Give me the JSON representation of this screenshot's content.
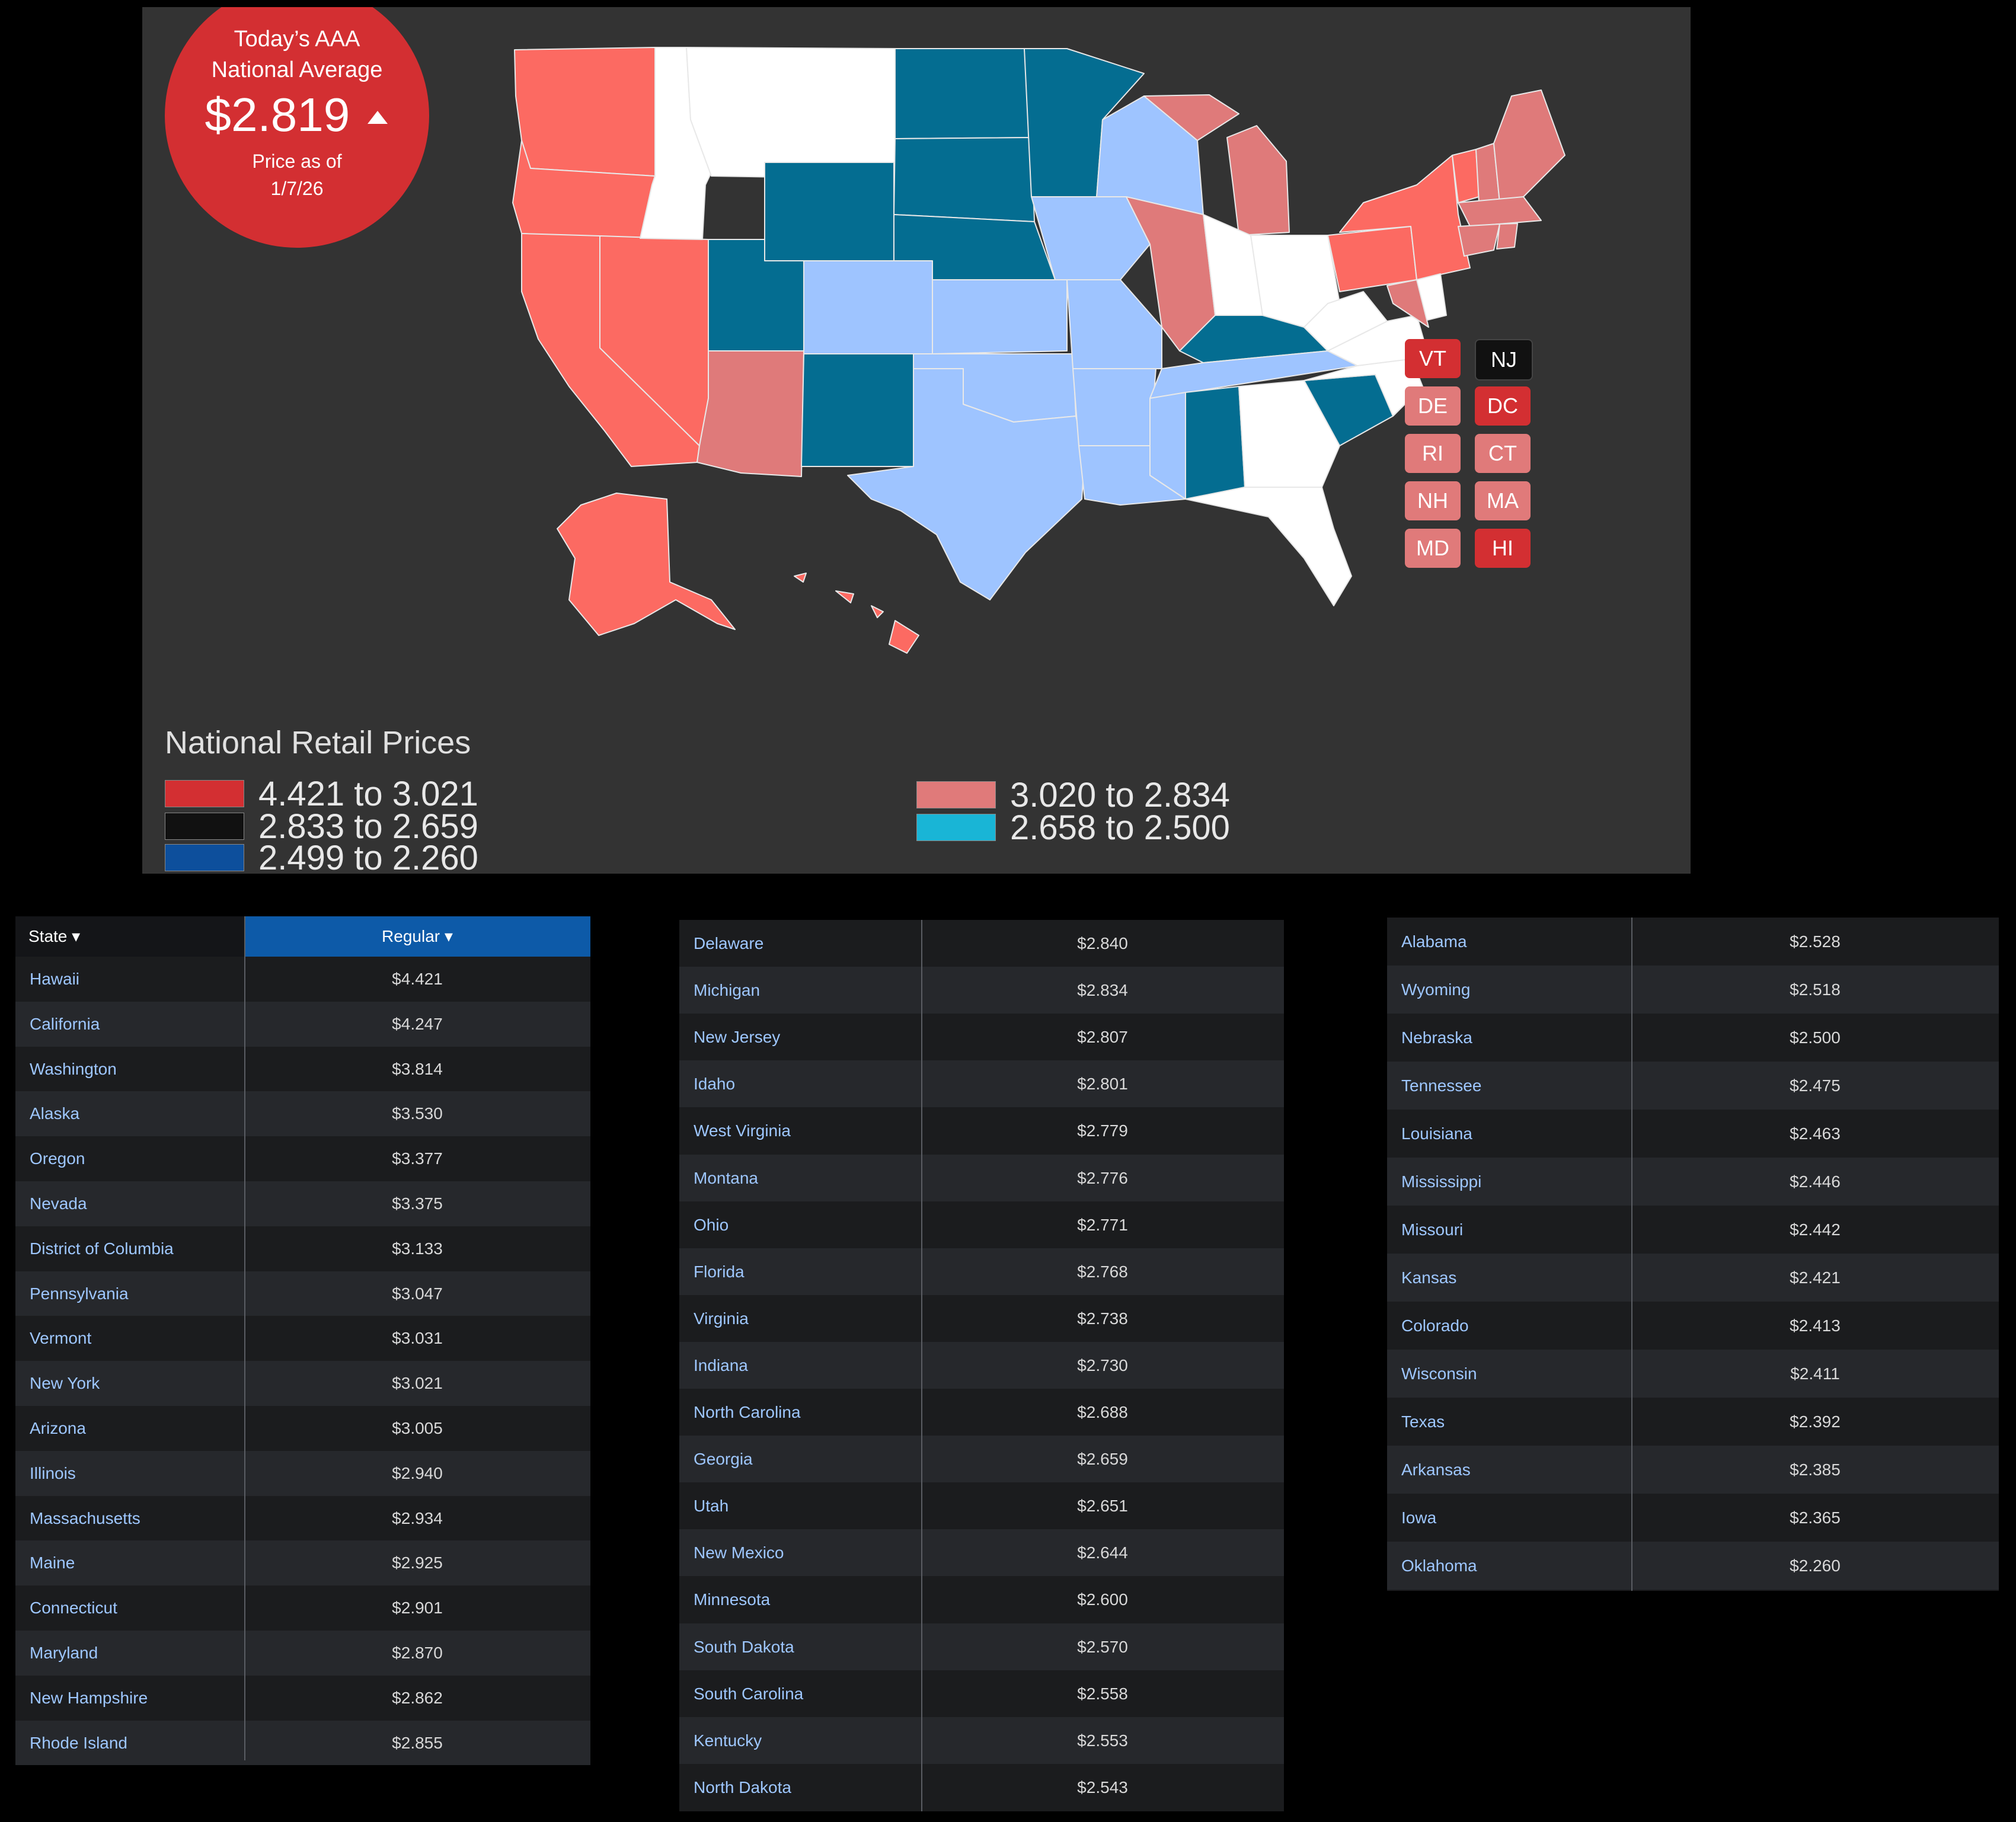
{
  "badge": {
    "line1": "Today’s AAA",
    "line2": "National Average",
    "price": "$2.819",
    "trend_icon": "up-triangle-icon",
    "asof_line1": "Price as of",
    "asof_line2": "1/7/26"
  },
  "legend": {
    "title": "National Retail Prices",
    "items": [
      {
        "label": "4.421 to 3.021",
        "color": "#d32f32"
      },
      {
        "label": "2.833 to 2.659",
        "color": "#111111"
      },
      {
        "label": "2.499 to 2.260",
        "color": "#0d4f9c"
      },
      {
        "label": "3.020 to 2.834",
        "color": "#e07a7a"
      },
      {
        "label": "2.658 to 2.500",
        "color": "#19b5d6"
      }
    ]
  },
  "small_states": [
    {
      "code": "VT",
      "color": "#d32f32"
    },
    {
      "code": "NJ",
      "color": "#111111"
    },
    {
      "code": "DE",
      "color": "#e07a7a"
    },
    {
      "code": "DC",
      "color": "#d32f32"
    },
    {
      "code": "RI",
      "color": "#e07a7a"
    },
    {
      "code": "CT",
      "color": "#e07a7a"
    },
    {
      "code": "NH",
      "color": "#e07a7a"
    },
    {
      "code": "MA",
      "color": "#e07a7a"
    },
    {
      "code": "MD",
      "color": "#e07a7a"
    },
    {
      "code": "HI",
      "color": "#d32f32"
    }
  ],
  "map_colors": {
    "red": "#fc6a62",
    "pink": "#df7a7a",
    "white": "#ffffff",
    "light_blue": "#9ec4ff",
    "teal": "#046d91",
    "background": "#333333"
  },
  "table": {
    "header_state": "State ▾",
    "header_regular": "Regular ▾",
    "col1": [
      {
        "state": "Hawaii",
        "price": "$4.421"
      },
      {
        "state": "California",
        "price": "$4.247"
      },
      {
        "state": "Washington",
        "price": "$3.814"
      },
      {
        "state": "Alaska",
        "price": "$3.530"
      },
      {
        "state": "Oregon",
        "price": "$3.377"
      },
      {
        "state": "Nevada",
        "price": "$3.375"
      },
      {
        "state": "District of Columbia",
        "price": "$3.133"
      },
      {
        "state": "Pennsylvania",
        "price": "$3.047"
      },
      {
        "state": "Vermont",
        "price": "$3.031"
      },
      {
        "state": "New York",
        "price": "$3.021"
      },
      {
        "state": "Arizona",
        "price": "$3.005"
      },
      {
        "state": "Illinois",
        "price": "$2.940"
      },
      {
        "state": "Massachusetts",
        "price": "$2.934"
      },
      {
        "state": "Maine",
        "price": "$2.925"
      },
      {
        "state": "Connecticut",
        "price": "$2.901"
      },
      {
        "state": "Maryland",
        "price": "$2.870"
      },
      {
        "state": "New Hampshire",
        "price": "$2.862"
      },
      {
        "state": "Rhode Island",
        "price": "$2.855"
      }
    ],
    "col2": [
      {
        "state": "Delaware",
        "price": "$2.840"
      },
      {
        "state": "Michigan",
        "price": "$2.834"
      },
      {
        "state": "New Jersey",
        "price": "$2.807"
      },
      {
        "state": "Idaho",
        "price": "$2.801"
      },
      {
        "state": "West Virginia",
        "price": "$2.779"
      },
      {
        "state": "Montana",
        "price": "$2.776"
      },
      {
        "state": "Ohio",
        "price": "$2.771"
      },
      {
        "state": "Florida",
        "price": "$2.768"
      },
      {
        "state": "Virginia",
        "price": "$2.738"
      },
      {
        "state": "Indiana",
        "price": "$2.730"
      },
      {
        "state": "North Carolina",
        "price": "$2.688"
      },
      {
        "state": "Georgia",
        "price": "$2.659"
      },
      {
        "state": "Utah",
        "price": "$2.651"
      },
      {
        "state": "New Mexico",
        "price": "$2.644"
      },
      {
        "state": "Minnesota",
        "price": "$2.600"
      },
      {
        "state": "South Dakota",
        "price": "$2.570"
      },
      {
        "state": "South Carolina",
        "price": "$2.558"
      },
      {
        "state": "Kentucky",
        "price": "$2.553"
      },
      {
        "state": "North Dakota",
        "price": "$2.543"
      }
    ],
    "col3": [
      {
        "state": "Alabama",
        "price": "$2.528"
      },
      {
        "state": "Wyoming",
        "price": "$2.518"
      },
      {
        "state": "Nebraska",
        "price": "$2.500"
      },
      {
        "state": "Tennessee",
        "price": "$2.475"
      },
      {
        "state": "Louisiana",
        "price": "$2.463"
      },
      {
        "state": "Mississippi",
        "price": "$2.446"
      },
      {
        "state": "Missouri",
        "price": "$2.442"
      },
      {
        "state": "Kansas",
        "price": "$2.421"
      },
      {
        "state": "Colorado",
        "price": "$2.413"
      },
      {
        "state": "Wisconsin",
        "price": "$2.411"
      },
      {
        "state": "Texas",
        "price": "$2.392"
      },
      {
        "state": "Arkansas",
        "price": "$2.385"
      },
      {
        "state": "Iowa",
        "price": "$2.365"
      },
      {
        "state": "Oklahoma",
        "price": "$2.260"
      }
    ]
  }
}
